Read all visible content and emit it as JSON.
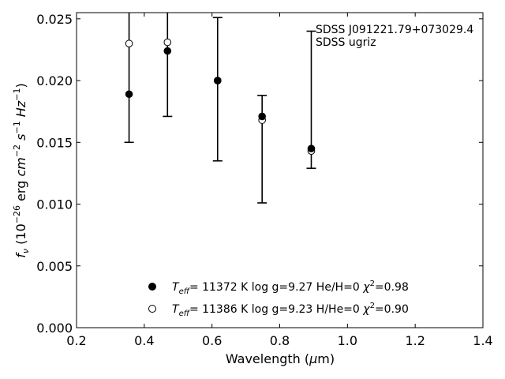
{
  "chart_data": {
    "type": "scatter",
    "title": "",
    "xlabel": "Wavelength (μm)",
    "ylabel": "fν (10⁻²⁶ erg cm⁻² s⁻¹ Hz⁻¹)",
    "xlim": [
      0.2,
      1.4
    ],
    "ylim": [
      0.0,
      0.0255
    ],
    "xticks": [
      0.2,
      0.4,
      0.6,
      0.8,
      1.0,
      1.2,
      1.4
    ],
    "xtick_labels": [
      "0.2",
      "0.4",
      "0.6",
      "0.8",
      "1.0",
      "1.2",
      "1.4"
    ],
    "yticks": [
      0.0,
      0.005,
      0.01,
      0.015,
      0.02,
      0.025
    ],
    "ytick_labels": [
      "0.000",
      "0.005",
      "0.010",
      "0.015",
      "0.020",
      "0.025"
    ],
    "grid": false,
    "legend_position": "bottom-center",
    "annotation": {
      "lines": [
        "SDSS J091221.79+073029.4",
        "SDSS ugriz"
      ],
      "position": "top-right"
    },
    "observed": {
      "name": "SDSS ugriz",
      "points": [
        {
          "x": 0.3551,
          "y": null,
          "ylo": 0.015,
          "yhi": null
        },
        {
          "x": 0.4686,
          "y": null,
          "ylo": 0.0171,
          "yhi": null
        },
        {
          "x": 0.6166,
          "y": null,
          "ylo": 0.0135,
          "yhi": 0.0251
        },
        {
          "x": 0.748,
          "y": null,
          "ylo": 0.0101,
          "yhi": 0.0188
        },
        {
          "x": 0.8932,
          "y": null,
          "ylo": 0.0129,
          "yhi": 0.024
        }
      ]
    },
    "series": [
      {
        "name": "T_eff= 11372 K  log g=9.27  He/H=0  χ²=0.98",
        "marker": "filled",
        "x": [
          0.3551,
          0.4686,
          0.6166,
          0.748,
          0.8932
        ],
        "y": [
          0.0189,
          0.0224,
          0.02,
          0.0171,
          0.0145
        ]
      },
      {
        "name": "T_eff= 11386 K  log g=9.23  H/He=0  χ²=0.90",
        "marker": "open",
        "x": [
          0.3551,
          0.4686,
          0.6166,
          0.748,
          0.8932
        ],
        "y": [
          0.023,
          0.0231,
          0.02,
          0.0168,
          0.0143
        ]
      }
    ],
    "legend": [
      {
        "marker": "filled",
        "teff": "= 11372 K",
        "logg": "log g=9.27",
        "comp": "He/H=0",
        "chi": "=0.98"
      },
      {
        "marker": "open",
        "teff": "= 11386 K",
        "logg": "log g=9.23",
        "comp": "H/He=0",
        "chi": "=0.90"
      }
    ]
  }
}
